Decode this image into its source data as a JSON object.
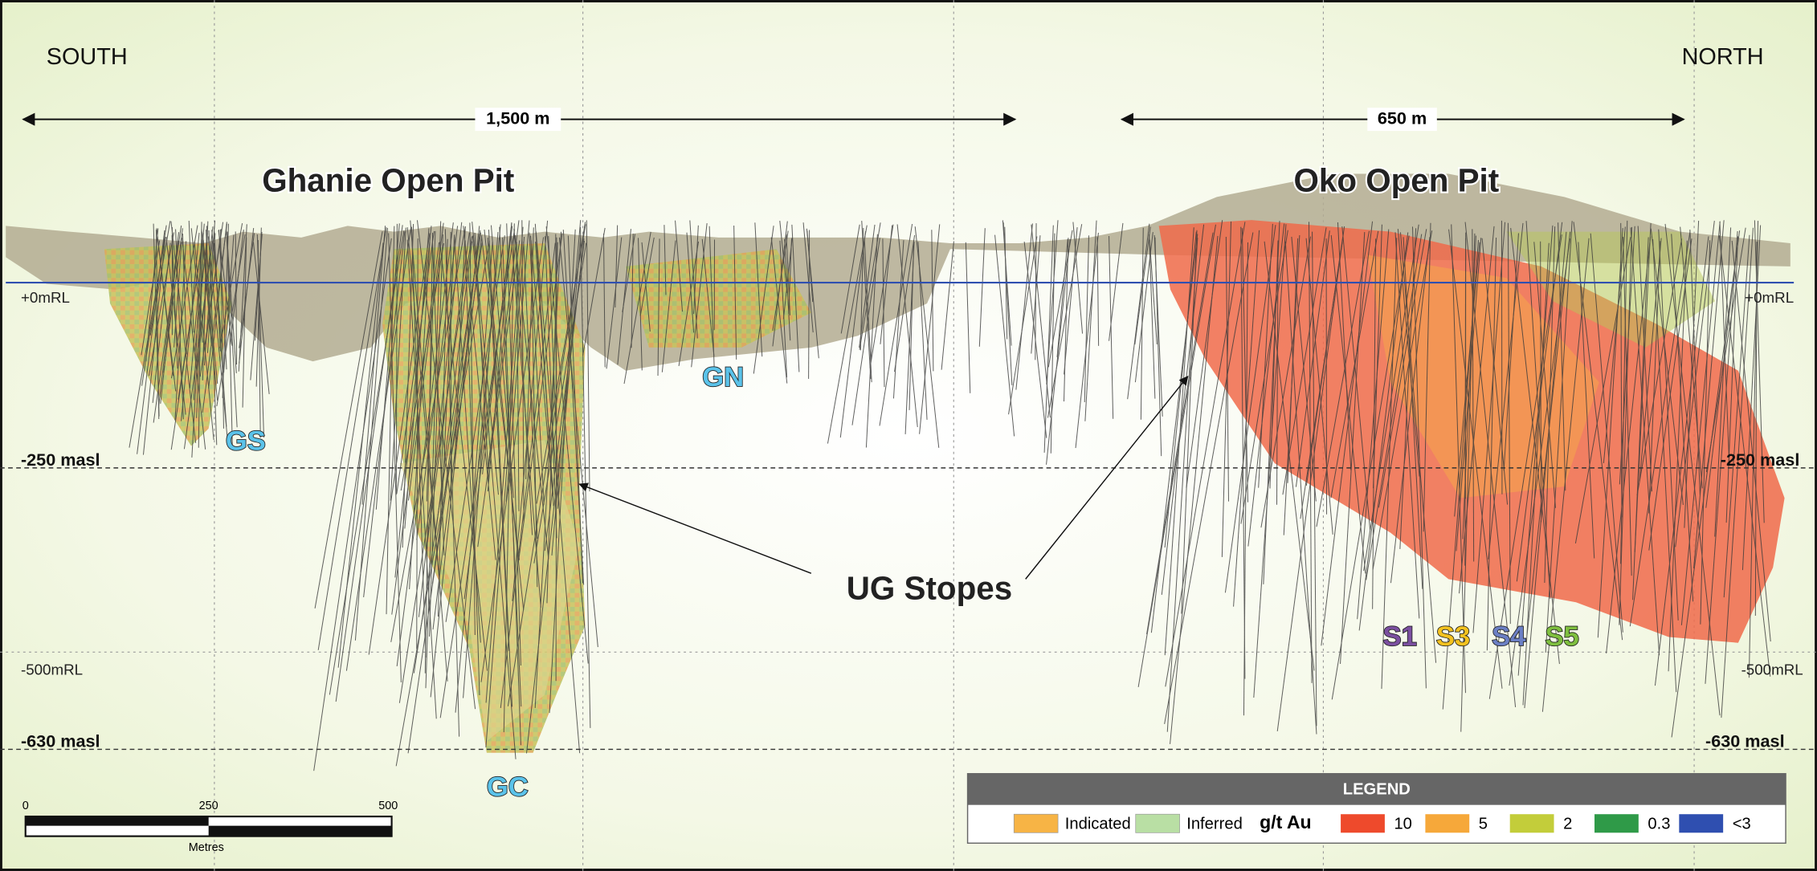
{
  "directions": {
    "south": "SOUTH",
    "north": "NORTH"
  },
  "dimensions": [
    "1,500 m",
    "650 m"
  ],
  "pits": [
    "Ghanie Open Pit",
    "Oko Open Pit"
  ],
  "levels": [
    {
      "left": "+0mRL",
      "right": "+0mRL"
    },
    {
      "left": "-250 masl",
      "right": "-250 masl"
    },
    {
      "left": "-500mRL",
      "right": "-500mRL"
    },
    {
      "left": "-630 masl",
      "right": "-630 masl"
    }
  ],
  "zones": [
    {
      "label": "GS",
      "color": "#5bc3ea"
    },
    {
      "label": "GN",
      "color": "#5bc3ea"
    },
    {
      "label": "GC",
      "color": "#5bc3ea"
    },
    {
      "label": "S1",
      "color": "#7b4fa0"
    },
    {
      "label": "S3",
      "color": "#f4c21f"
    },
    {
      "label": "S4",
      "color": "#6b7fc4"
    },
    {
      "label": "S5",
      "color": "#7fbf3f"
    }
  ],
  "annotation": "UG Stopes",
  "legend": {
    "title": "LEGEND",
    "classes": [
      {
        "label": "Indicated",
        "color": "#f7b445"
      },
      {
        "label": "Inferred",
        "color": "#b9dfa4"
      }
    ],
    "grade_label": "g/t Au",
    "grades": [
      {
        "label": "10",
        "color": "#ee4a2c"
      },
      {
        "label": "5",
        "color": "#f6a83a"
      },
      {
        "label": "2",
        "color": "#c3cd3a"
      },
      {
        "label": "0.3",
        "color": "#2f9a48"
      },
      {
        "label": "<3",
        "color": "#2f4fb0"
      }
    ]
  },
  "scale_bar": {
    "ticks": [
      "0",
      "250",
      "500"
    ],
    "unit": "Metres"
  }
}
